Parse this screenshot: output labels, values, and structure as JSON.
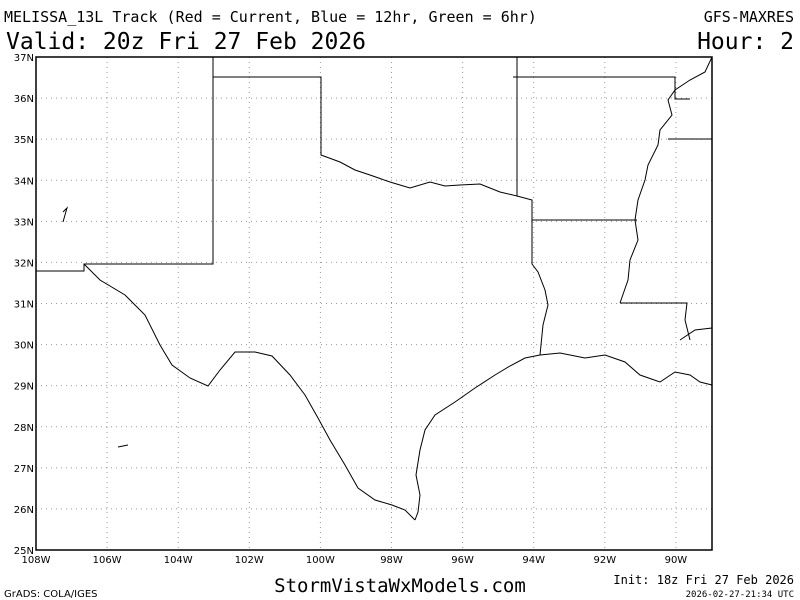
{
  "header": {
    "title": "MELISSA_13L Track (Red = Current, Blue = 12hr, Green = 6hr)",
    "model": "GFS-MAXRES",
    "valid": "Valid: 20z Fri 27 Feb 2026",
    "hour": "Hour: 2"
  },
  "map": {
    "lat_labels": [
      "37N",
      "36N",
      "35N",
      "34N",
      "33N",
      "32N",
      "31N",
      "30N",
      "29N",
      "28N",
      "27N",
      "26N",
      "25N"
    ],
    "lon_labels": [
      "108W",
      "106W",
      "104W",
      "102W",
      "100W",
      "98W",
      "96W",
      "94W",
      "92W",
      "90W"
    ]
  },
  "footer": {
    "credit": "GrADS: COLA/IGES",
    "website": "StormVistaWxModels.com",
    "init": "Init: 18z Fri 27 Feb 2026",
    "timestamp": "2026-02-27-21:34 UTC"
  }
}
